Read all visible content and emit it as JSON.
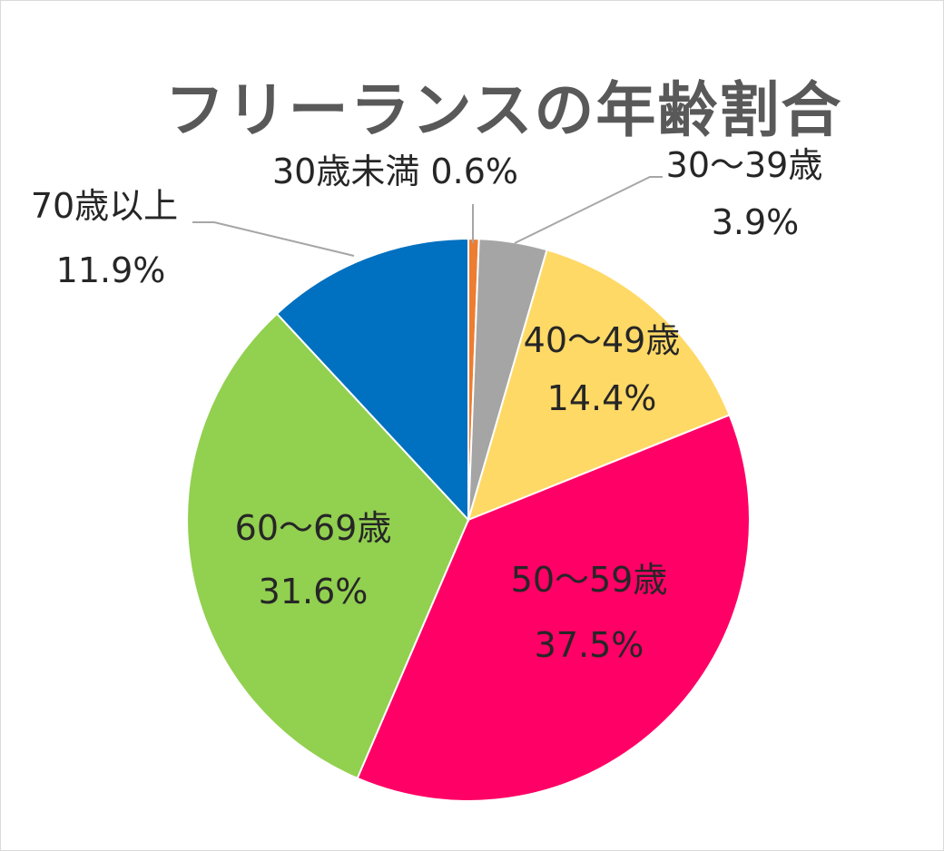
{
  "chart_data": {
    "type": "pie",
    "title": "フリーランスの年齢割合",
    "start_angle_deg": 0,
    "direction": "clockwise",
    "slices": [
      {
        "label": "30歳未満",
        "value": 0.6,
        "value_text": "0.6%",
        "color": "#ED7D31",
        "label_position": "outside"
      },
      {
        "label": "30～39歳",
        "value": 3.9,
        "value_text": "3.9%",
        "color": "#A5A5A5",
        "label_position": "outside"
      },
      {
        "label": "40～49歳",
        "value": 14.4,
        "value_text": "14.4%",
        "color": "#FFD966",
        "label_position": "inside"
      },
      {
        "label": "50～59歳",
        "value": 37.5,
        "value_text": "37.5%",
        "color": "#FF0066",
        "label_position": "inside"
      },
      {
        "label": "60～69歳",
        "value": 31.6,
        "value_text": "31.6%",
        "color": "#92D050",
        "label_position": "inside"
      },
      {
        "label": "70歳以上",
        "value": 11.9,
        "value_text": "11.9%",
        "color": "#0070C0",
        "label_position": "outside"
      }
    ]
  }
}
